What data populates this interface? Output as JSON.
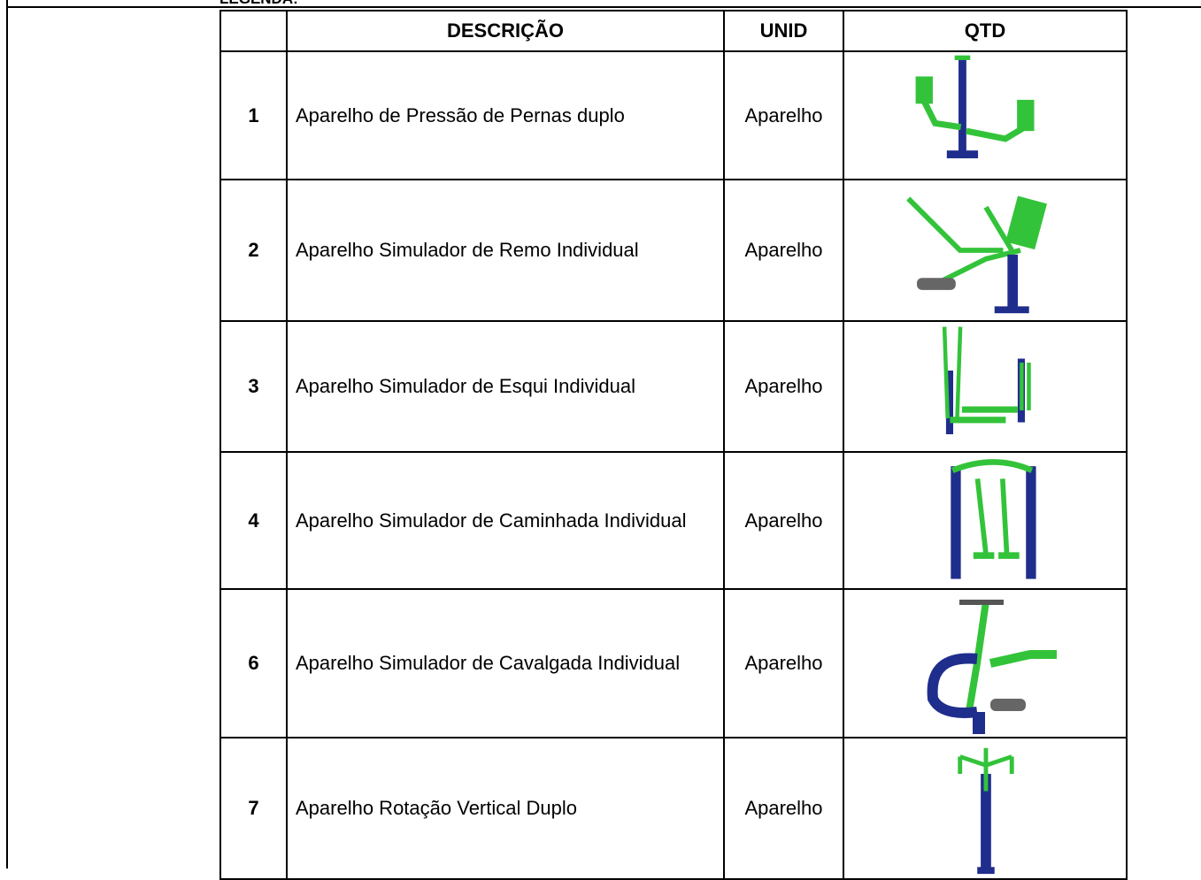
{
  "legend": "LEGENDA:",
  "table": {
    "header": {
      "description": "DESCRIÇÃO",
      "unit": "UNID",
      "quantity": "QTD"
    },
    "rows": [
      {
        "number": "1",
        "description": "Aparelho de Pressão de Pernas duplo",
        "unit": "Aparelho"
      },
      {
        "number": "2",
        "description": "Aparelho Simulador de Remo Individual",
        "unit": "Aparelho"
      },
      {
        "number": "3",
        "description": "Aparelho Simulador de Esqui Individual",
        "unit": "Aparelho"
      },
      {
        "number": "4",
        "description": "Aparelho Simulador de Caminhada Individual",
        "unit": "Aparelho"
      },
      {
        "number": "6",
        "description": "Aparelho Simulador de Cavalgada Individual",
        "unit": "Aparelho"
      },
      {
        "number": "7",
        "description": "Aparelho Rotação Vertical Duplo",
        "unit": "Aparelho"
      }
    ]
  }
}
